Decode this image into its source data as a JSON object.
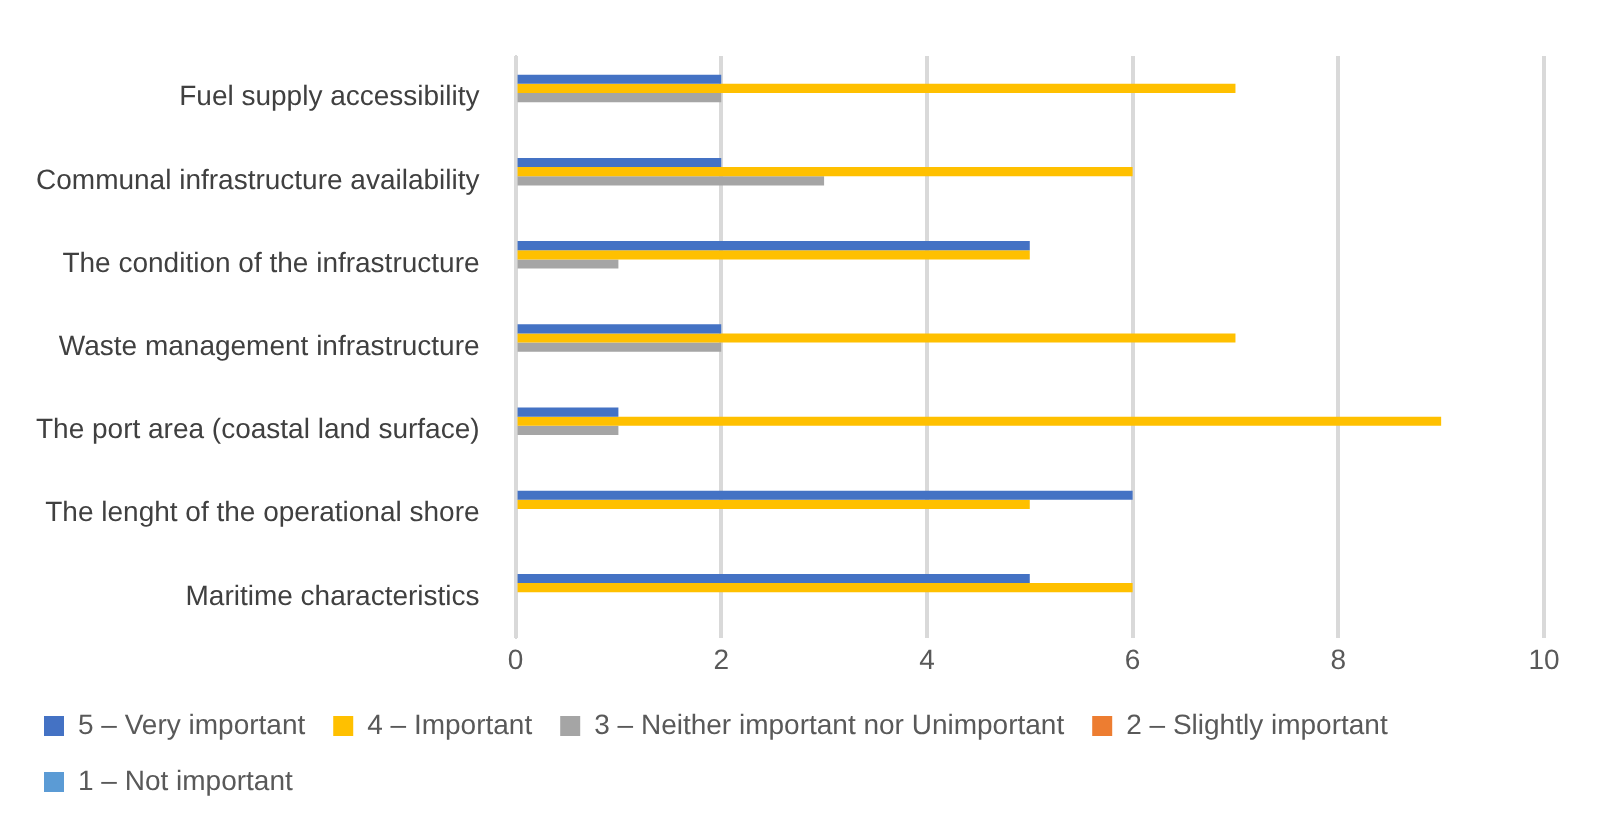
{
  "chart_data": {
    "type": "bar",
    "orientation": "horizontal",
    "categories": [
      "Fuel supply accessibility",
      "Communal infrastructure availability",
      "The condition of the infrastructure",
      "Waste management infrastructure",
      "The port area (coastal land surface)",
      "The lenght of the operational shore",
      "Maritime characteristics"
    ],
    "series": [
      {
        "name": "5 – Very important",
        "color": "#4472c4",
        "values": [
          2,
          2,
          5,
          2,
          1,
          6,
          5
        ]
      },
      {
        "name": "4 – Important",
        "color": "#ffc000",
        "values": [
          7,
          6,
          5,
          7,
          9,
          5,
          6
        ]
      },
      {
        "name": "3 – Neither important nor Unimportant",
        "color": "#a5a5a5",
        "values": [
          2,
          3,
          1,
          2,
          1,
          0,
          0
        ]
      },
      {
        "name": "2 – Slightly important",
        "color": "#ed7d31",
        "values": [
          0,
          0,
          0,
          0,
          0,
          0,
          0
        ]
      },
      {
        "name": "1 – Not important",
        "color": "#5b9bd5",
        "values": [
          0,
          0,
          0,
          0,
          0,
          0,
          0
        ]
      }
    ],
    "xlim": [
      0,
      10
    ],
    "xticks": [
      0,
      2,
      4,
      6,
      8,
      10
    ],
    "grid": "x",
    "legend": "bottom"
  }
}
